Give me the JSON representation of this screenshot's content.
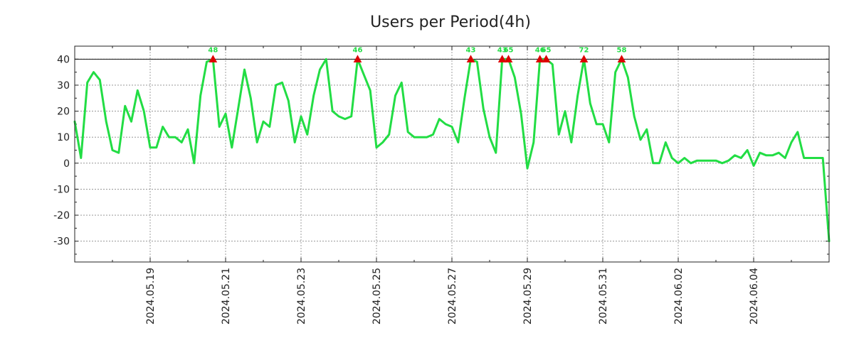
{
  "chart_data": {
    "type": "line",
    "title": "Users per Period(4h)",
    "xlabel": "",
    "ylabel": "",
    "ylim": [
      -38,
      45
    ],
    "yticks": [
      40,
      30,
      20,
      10,
      0,
      -10,
      -20,
      -30
    ],
    "ytick_labels": [
      "40",
      "30",
      "20",
      "10",
      "0",
      "-10",
      "-20",
      "-30"
    ],
    "xlim": [
      0,
      120
    ],
    "x_ticks": [
      {
        "x": 12,
        "label": "2024.05.19"
      },
      {
        "x": 24,
        "label": "2024.05.21"
      },
      {
        "x": 36,
        "label": "2024.05.23"
      },
      {
        "x": 48,
        "label": "2024.05.25"
      },
      {
        "x": 60,
        "label": "2024.05.27"
      },
      {
        "x": 72,
        "label": "2024.05.29"
      },
      {
        "x": 84,
        "label": "2024.05.31"
      },
      {
        "x": 96,
        "label": "2024.06.02"
      },
      {
        "x": 108,
        "label": "2024.06.04"
      }
    ],
    "threshold": 40,
    "grid": true,
    "line_color": "#22dd44",
    "marker_color": "#dd0000",
    "series": [
      {
        "name": "Users",
        "x": [
          0,
          1,
          2,
          3,
          4,
          5,
          6,
          7,
          8,
          9,
          10,
          11,
          12,
          13,
          14,
          15,
          16,
          17,
          18,
          19,
          20,
          21,
          22,
          23,
          24,
          25,
          26,
          27,
          28,
          29,
          30,
          31,
          32,
          33,
          34,
          35,
          36,
          37,
          38,
          39,
          40,
          41,
          42,
          43,
          44,
          45,
          46,
          47,
          48,
          49,
          50,
          51,
          52,
          53,
          54,
          55,
          56,
          57,
          58,
          59,
          60,
          61,
          62,
          63,
          64,
          65,
          66,
          67,
          68,
          69,
          70,
          71,
          72,
          73,
          74,
          75,
          76,
          77,
          78,
          79,
          80,
          81,
          82,
          83,
          84,
          85,
          86,
          87,
          88,
          89,
          90,
          91,
          92,
          93,
          94,
          95,
          96,
          97,
          98,
          99,
          100,
          101,
          102,
          103,
          104,
          105,
          106,
          107,
          108,
          109,
          110,
          111,
          112,
          113,
          114,
          115,
          116,
          117,
          118,
          119,
          120
        ],
        "values": [
          16,
          2,
          31,
          35,
          32,
          16,
          5,
          4,
          22,
          16,
          28,
          20,
          6,
          6,
          14,
          10,
          10,
          8,
          13,
          0,
          26,
          39,
          40,
          14,
          19,
          6,
          21,
          36,
          25,
          8,
          16,
          14,
          30,
          31,
          24,
          8,
          18,
          11,
          26,
          36,
          40,
          20,
          18,
          17,
          18,
          40,
          34,
          28,
          6,
          8,
          11,
          26,
          31,
          12,
          10,
          10,
          10,
          11,
          17,
          15,
          14,
          8,
          25,
          40,
          39,
          21,
          10,
          4,
          40,
          40,
          33,
          19,
          -2,
          8,
          40,
          40,
          38,
          11,
          20,
          8,
          26,
          40,
          23,
          15,
          15,
          8,
          35,
          40,
          33,
          18,
          9,
          13,
          0,
          0,
          8,
          2,
          0,
          2,
          0,
          1,
          1,
          1,
          1,
          0,
          1,
          3,
          2,
          5,
          -1,
          4,
          3,
          3,
          4,
          2,
          8,
          12,
          2,
          2,
          2,
          2,
          -30
        ]
      }
    ],
    "peaks": [
      {
        "x": 22,
        "y": 40,
        "label": "48"
      },
      {
        "x": 45,
        "y": 40,
        "label": "46"
      },
      {
        "x": 63,
        "y": 40,
        "label": "43"
      },
      {
        "x": 68,
        "y": 40,
        "label": "43"
      },
      {
        "x": 69,
        "y": 40,
        "label": "65"
      },
      {
        "x": 74,
        "y": 40,
        "label": "46"
      },
      {
        "x": 75,
        "y": 40,
        "label": "65"
      },
      {
        "x": 81,
        "y": 40,
        "label": "72"
      },
      {
        "x": 87,
        "y": 40,
        "label": "58"
      }
    ]
  }
}
